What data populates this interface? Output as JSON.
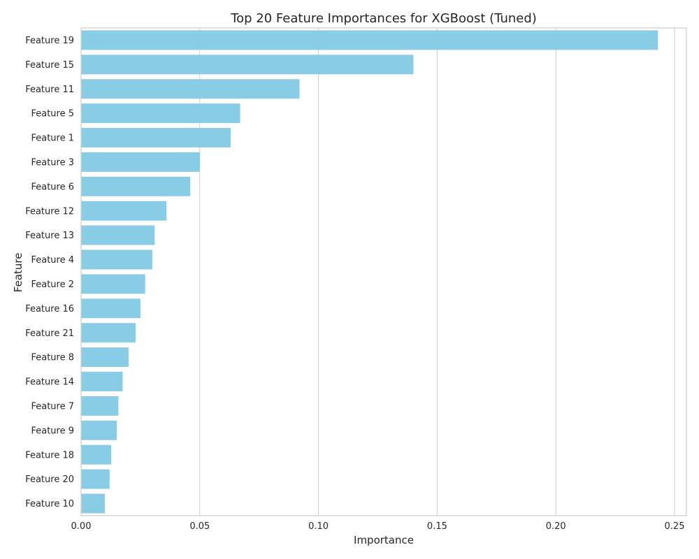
{
  "chart_data": {
    "type": "bar",
    "orientation": "horizontal",
    "title": "Top 20 Feature Importances for XGBoost (Tuned)",
    "xlabel": "Importance",
    "ylabel": "Feature",
    "xlim": [
      0,
      0.255
    ],
    "xticks": [
      0.0,
      0.05,
      0.1,
      0.15,
      0.2,
      0.25
    ],
    "xtick_labels": [
      "0.00",
      "0.05",
      "0.10",
      "0.15",
      "0.20",
      "0.25"
    ],
    "grid": "vertical",
    "bar_color": "#89cce6",
    "categories": [
      "Feature 19",
      "Feature 15",
      "Feature 11",
      "Feature 5",
      "Feature 1",
      "Feature 3",
      "Feature 6",
      "Feature 12",
      "Feature 13",
      "Feature 4",
      "Feature 2",
      "Feature 16",
      "Feature 21",
      "Feature 8",
      "Feature 14",
      "Feature 7",
      "Feature 9",
      "Feature 18",
      "Feature 20",
      "Feature 10"
    ],
    "values": [
      0.243,
      0.14,
      0.092,
      0.067,
      0.063,
      0.05,
      0.046,
      0.036,
      0.031,
      0.03,
      0.027,
      0.025,
      0.023,
      0.02,
      0.0175,
      0.0157,
      0.015,
      0.0127,
      0.012,
      0.01
    ]
  }
}
